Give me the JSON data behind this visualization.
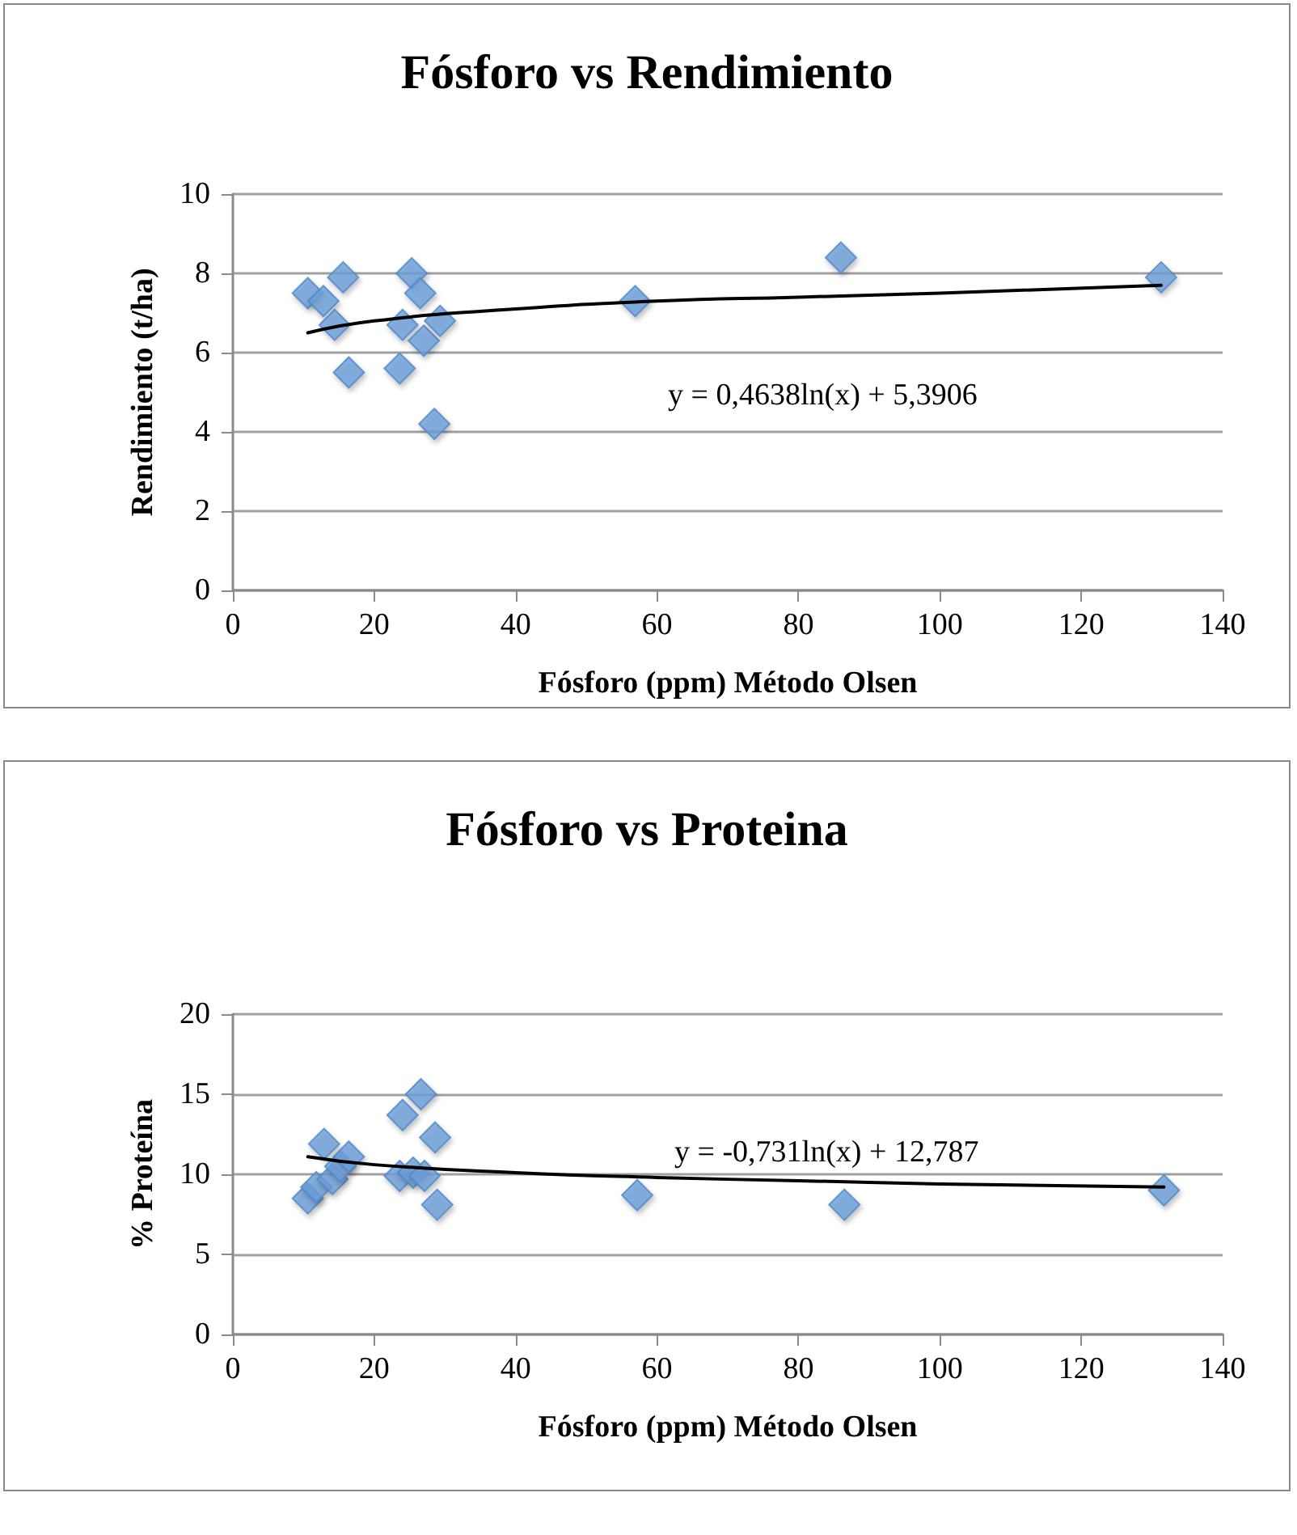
{
  "chart_data": [
    {
      "type": "scatter",
      "title": "Fósforo vs Rendimiento",
      "xlabel": "Fósforo (ppm) Método Olsen",
      "ylabel": "Rendimiento (t/ha)",
      "xlim": [
        0,
        140
      ],
      "xticks": [
        0,
        20,
        40,
        60,
        80,
        100,
        120,
        140
      ],
      "ylim": [
        0,
        10
      ],
      "yticks": [
        0,
        2,
        4,
        6,
        8,
        10
      ],
      "grid": "y",
      "marker": "diamond",
      "annotations": [
        "y = 0,4638ln(x) + 5,3906"
      ],
      "series": [
        {
          "color": "#6a9fd8",
          "x": [
            10.6,
            12.8,
            14.4,
            15.6,
            16.4,
            23.6,
            24.0,
            25.3,
            26.5,
            27.0,
            28.5,
            29.3,
            56.9,
            86.0,
            131.3
          ],
          "values": [
            7.5,
            7.3,
            6.7,
            7.9,
            5.5,
            5.6,
            6.7,
            8.0,
            7.5,
            6.3,
            4.2,
            6.8,
            7.3,
            8.4,
            7.9
          ]
        },
        {
          "type": "line",
          "color": "#000000",
          "marker": "none",
          "x": [
            10.6,
            20,
            40,
            60,
            80,
            100,
            131.3
          ],
          "values": [
            6.5,
            6.8,
            7.1,
            7.3,
            7.4,
            7.5,
            7.7
          ]
        }
      ]
    },
    {
      "type": "scatter",
      "title": "Fósforo vs Proteina",
      "xlabel": "Fósforo (ppm) Método Olsen",
      "ylabel": "% Proteína",
      "xlim": [
        0,
        140
      ],
      "xticks": [
        0,
        20,
        40,
        60,
        80,
        100,
        120,
        140
      ],
      "ylim": [
        0,
        20
      ],
      "yticks": [
        0,
        5,
        10,
        15,
        20
      ],
      "grid": "y",
      "marker": "diamond",
      "annotations": [
        "y = -0,731ln(x) + 12,787"
      ],
      "series": [
        {
          "color": "#6a9fd8",
          "x": [
            10.6,
            11.8,
            12.9,
            14.1,
            15.2,
            16.4,
            23.6,
            24.0,
            25.5,
            26.6,
            27.1,
            28.6,
            28.9,
            57.2,
            86.5,
            131.7
          ],
          "values": [
            8.5,
            9.2,
            11.9,
            9.7,
            10.5,
            11.1,
            9.9,
            13.7,
            10.1,
            15.0,
            9.9,
            12.3,
            8.1,
            8.7,
            8.1,
            9.0
          ]
        },
        {
          "type": "line",
          "color": "#000000",
          "marker": "none",
          "x": [
            10.6,
            20,
            40,
            60,
            80,
            100,
            131.7
          ],
          "values": [
            11.1,
            10.6,
            10.1,
            9.8,
            9.6,
            9.4,
            9.2
          ]
        }
      ]
    }
  ]
}
